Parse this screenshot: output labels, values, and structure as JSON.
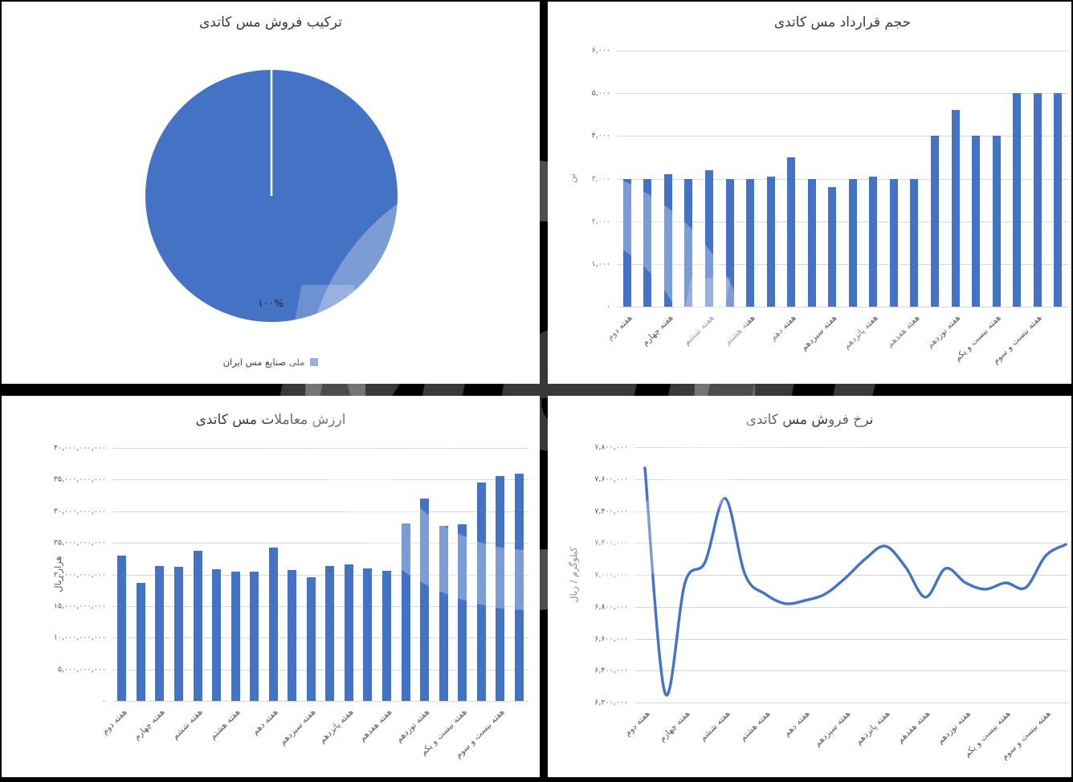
{
  "colors": {
    "accent_blue": "#4472C4",
    "grid_line": "#d9d9d9",
    "tick_text": "#595959",
    "title_text": "#3a3a3a",
    "page_background": "#000000",
    "panel_background": "#ffffff"
  },
  "watermark": {
    "text": "Mehr"
  },
  "week_labels": [
    "هفته دوم",
    "هفته چهارم",
    "هفته ششم",
    "هفته هشتم",
    "هفته دهم",
    "هفته سیزدهم",
    "هفته پانزدهم",
    "هفته هفدهم",
    "هفته نوزدهم",
    "هفته بیست و یکم",
    "هفته بیست و سوم"
  ],
  "chart_data": [
    {
      "id": "sales-composition",
      "type": "pie",
      "title": "ترکیب فروش مس کاتدی",
      "legend_position": "bottom",
      "slices": [
        {
          "label": "ملی صنایع مس ایران",
          "value": 100,
          "display": "۱۰۰%",
          "color": "#4472C4"
        }
      ]
    },
    {
      "id": "contract-volume",
      "type": "bar",
      "title": "حجم قرارداد مس کاتدی",
      "ylabel": "تن",
      "ylim": [
        0,
        6000
      ],
      "y_tick_step": 1000,
      "y_tick_labels_desc": [
        "۶,۰۰۰",
        "۵,۰۰۰",
        "۴,۰۰۰",
        "۳,۰۰۰",
        "۲,۰۰۰",
        "۱,۰۰۰",
        "۰"
      ],
      "label_every": 2,
      "x_labels": [
        "هفته دوم",
        "هفته چهارم",
        "هفته ششم",
        "هفته هشتم",
        "هفته دهم",
        "هفته سیزدهم",
        "هفته پانزدهم",
        "هفته هفدهم",
        "هفته نوزدهم",
        "هفته بیست و یکم",
        "هفته بیست و سوم"
      ],
      "values": [
        3000,
        3000,
        3100,
        3000,
        3200,
        3000,
        3000,
        3050,
        3500,
        3000,
        2800,
        3000,
        3050,
        3000,
        3000,
        4000,
        4600,
        4000,
        4000,
        5000,
        5000,
        5000
      ],
      "grid": true,
      "bar_color": "#4472C4"
    },
    {
      "id": "trade-value",
      "type": "bar",
      "title": "ارزش معاملات مس کاتدی",
      "ylabel": "هزار ریال",
      "ylim": [
        0,
        40000000000
      ],
      "y_tick_step": 5000000000,
      "y_tick_labels_desc": [
        "۴۰,۰۰۰,۰۰۰,۰۰۰",
        "۳۵,۰۰۰,۰۰۰,۰۰۰",
        "۳۰,۰۰۰,۰۰۰,۰۰۰",
        "۲۵,۰۰۰,۰۰۰,۰۰۰",
        "۲۰,۰۰۰,۰۰۰,۰۰۰",
        "۱۵,۰۰۰,۰۰۰,۰۰۰",
        "۱۰,۰۰۰,۰۰۰,۰۰۰",
        "۵,۰۰۰,۰۰۰,۰۰۰",
        "۰"
      ],
      "label_every": 2,
      "x_labels": [
        "هفته دوم",
        "هفته چهارم",
        "هفته ششم",
        "هفته هشتم",
        "هفته دهم",
        "هفته سیزدهم",
        "هفته پانزدهم",
        "هفته هفدهم",
        "هفته نوزدهم",
        "هفته بیست و یکم",
        "هفته بیست و سوم"
      ],
      "values": [
        23000000000,
        18700000000,
        21300000000,
        21200000000,
        23800000000,
        20800000000,
        20400000000,
        20500000000,
        24200000000,
        20700000000,
        19500000000,
        21300000000,
        21600000000,
        21000000000,
        20600000000,
        28100000000,
        32000000000,
        27700000000,
        27900000000,
        34600000000,
        35500000000,
        35900000000
      ],
      "grid": true,
      "bar_color": "#4472C4"
    },
    {
      "id": "sale-rate",
      "type": "line",
      "title": "نرخ فروش مس کاتدی",
      "ylabel": "کیلوگرم / ریال",
      "ylim": [
        6200000,
        7800000
      ],
      "y_tick_step": 200000,
      "y_tick_labels_desc": [
        "۷,۸۰۰,۰۰۰",
        "۷,۶۰۰,۰۰۰",
        "۷,۴۰۰,۰۰۰",
        "۷,۲۰۰,۰۰۰",
        "۷,۰۰۰,۰۰۰",
        "۶,۸۰۰,۰۰۰",
        "۶,۶۰۰,۰۰۰",
        "۶,۴۰۰,۰۰۰",
        "۶,۲۰۰,۰۰۰"
      ],
      "label_every": 2,
      "x_labels": [
        "هفته دوم",
        "هفته چهارم",
        "هفته ششم",
        "هفته هشتم",
        "هفته دهم",
        "هفته سیزدهم",
        "هفته پانزدهم",
        "هفته هفدهم",
        "هفته نوزدهم",
        "هفته بیست و یکم",
        "هفته بیست و سوم"
      ],
      "values": [
        7670000,
        6260000,
        6950000,
        7080000,
        7480000,
        7000000,
        6880000,
        6820000,
        6840000,
        6880000,
        6980000,
        7100000,
        7180000,
        7050000,
        6860000,
        7040000,
        6950000,
        6910000,
        6950000,
        6920000,
        7120000,
        7190000
      ],
      "grid": true,
      "line_color": "#4472C4",
      "smooth": true
    }
  ]
}
